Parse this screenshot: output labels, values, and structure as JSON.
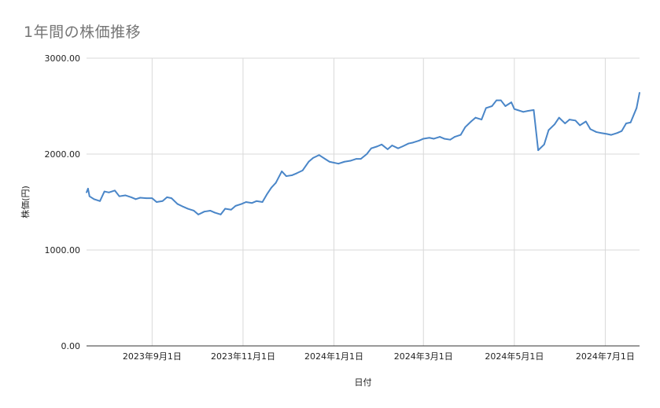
{
  "chart_data": {
    "type": "line",
    "title": "1年間の株価推移",
    "xlabel": "日付",
    "ylabel": "株価(円)",
    "ylim": [
      0,
      3000
    ],
    "y_ticks": [
      "0.00",
      "1000.00",
      "2000.00",
      "3000.00"
    ],
    "x_ticks": [
      "2023年9月1日",
      "2023年11月1日",
      "2024年1月1日",
      "2024年3月1日",
      "2024年5月1日",
      "2024年7月1日"
    ],
    "x_range": [
      "2023-07-19",
      "2024-07-24"
    ],
    "grid": true,
    "legend": "none",
    "line_color": "#4a86c8",
    "series": [
      {
        "x": [
          "2023-07-19",
          "2023-07-20",
          "2023-07-21",
          "2023-07-24",
          "2023-07-28",
          "2023-07-31",
          "2023-08-03",
          "2023-08-07",
          "2023-08-10",
          "2023-08-14",
          "2023-08-18",
          "2023-08-21",
          "2023-08-24",
          "2023-08-28",
          "2023-09-01",
          "2023-09-04",
          "2023-09-08",
          "2023-09-11",
          "2023-09-14",
          "2023-09-18",
          "2023-09-22",
          "2023-09-25",
          "2023-09-29",
          "2023-10-02",
          "2023-10-06",
          "2023-10-10",
          "2023-10-13",
          "2023-10-17",
          "2023-10-20",
          "2023-10-24",
          "2023-10-27",
          "2023-10-31",
          "2023-11-03",
          "2023-11-07",
          "2023-11-10",
          "2023-11-14",
          "2023-11-17",
          "2023-11-20",
          "2023-11-23",
          "2023-11-27",
          "2023-11-30",
          "2023-12-04",
          "2023-12-07",
          "2023-12-11",
          "2023-12-15",
          "2023-12-18",
          "2023-12-22",
          "2023-12-26",
          "2023-12-29",
          "2024-01-04",
          "2024-01-08",
          "2024-01-12",
          "2024-01-16",
          "2024-01-19",
          "2024-01-23",
          "2024-01-26",
          "2024-01-30",
          "2024-02-02",
          "2024-02-06",
          "2024-02-09",
          "2024-02-13",
          "2024-02-16",
          "2024-02-20",
          "2024-02-23",
          "2024-02-27",
          "2024-03-01",
          "2024-03-05",
          "2024-03-08",
          "2024-03-12",
          "2024-03-15",
          "2024-03-19",
          "2024-03-22",
          "2024-03-26",
          "2024-03-29",
          "2024-04-02",
          "2024-04-05",
          "2024-04-09",
          "2024-04-12",
          "2024-04-16",
          "2024-04-19",
          "2024-04-22",
          "2024-04-25",
          "2024-04-29",
          "2024-05-01",
          "2024-05-03",
          "2024-05-07",
          "2024-05-10",
          "2024-05-14",
          "2024-05-17",
          "2024-05-21",
          "2024-05-24",
          "2024-05-28",
          "2024-05-31",
          "2024-06-04",
          "2024-06-07",
          "2024-06-11",
          "2024-06-14",
          "2024-06-18",
          "2024-06-21",
          "2024-06-25",
          "2024-06-28",
          "2024-07-02",
          "2024-07-05",
          "2024-07-09",
          "2024-07-12",
          "2024-07-15",
          "2024-07-18",
          "2024-07-22",
          "2024-07-24"
        ],
        "values": [
          1600,
          1640,
          1560,
          1530,
          1510,
          1610,
          1600,
          1620,
          1560,
          1570,
          1550,
          1530,
          1545,
          1540,
          1540,
          1500,
          1510,
          1550,
          1540,
          1480,
          1450,
          1430,
          1410,
          1370,
          1400,
          1410,
          1390,
          1370,
          1430,
          1420,
          1460,
          1480,
          1500,
          1490,
          1510,
          1500,
          1580,
          1650,
          1700,
          1820,
          1770,
          1780,
          1800,
          1830,
          1920,
          1960,
          1990,
          1950,
          1920,
          1900,
          1920,
          1930,
          1950,
          1950,
          2000,
          2060,
          2080,
          2100,
          2050,
          2090,
          2060,
          2080,
          2110,
          2120,
          2140,
          2160,
          2170,
          2160,
          2180,
          2160,
          2150,
          2180,
          2200,
          2280,
          2340,
          2380,
          2360,
          2480,
          2500,
          2560,
          2560,
          2500,
          2540,
          2470,
          2460,
          2440,
          2450,
          2460,
          2040,
          2100,
          2250,
          2310,
          2380,
          2320,
          2360,
          2350,
          2300,
          2340,
          2260,
          2230,
          2220,
          2210,
          2200,
          2220,
          2240,
          2320,
          2330,
          2480,
          2640
        ]
      }
    ]
  }
}
